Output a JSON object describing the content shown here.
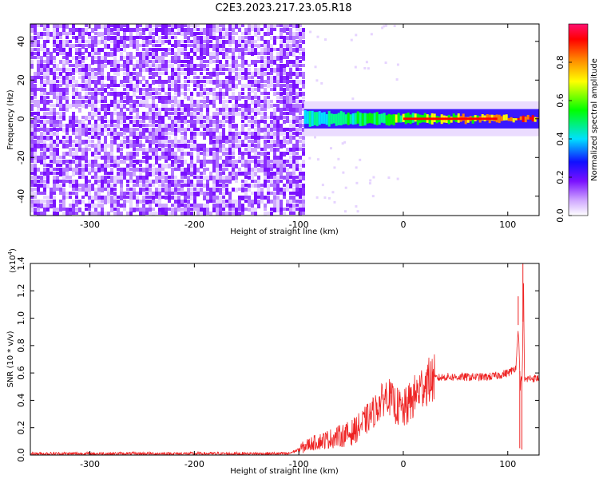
{
  "title": "C2E3.2023.217.23.05.R18",
  "chart_data": [
    {
      "type": "heatmap",
      "name": "spectrogram",
      "xlabel": "Height of straight line (km)",
      "ylabel": "Frequency (Hz)",
      "xlim": [
        -357,
        130
      ],
      "ylim": [
        -50,
        49
      ],
      "xticks": [
        -300,
        -200,
        -100,
        0,
        100
      ],
      "xtick_labels": [
        "-300",
        "-200",
        "-100",
        "0",
        "100"
      ],
      "yticks": [
        -40,
        -20,
        0,
        20,
        40
      ],
      "ytick_labels": [
        "-40",
        "-20",
        "0",
        "20",
        "40"
      ],
      "noise_region_km": [
        -357,
        -95
      ],
      "signal_band_hz": [
        -5,
        5
      ],
      "colorbar": {
        "label": "Normalized spectral amplitude",
        "range": [
          0,
          1
        ],
        "ticks": [
          0,
          0.2,
          0.4,
          0.6,
          0.8
        ],
        "tick_labels": [
          "0.0",
          "0.2",
          "0.4",
          "0.6",
          "0.8"
        ],
        "colors": [
          "#ffffff",
          "#cfa6ff",
          "#7a10ff",
          "#1010ff",
          "#00e0ff",
          "#00ff00",
          "#ffff00",
          "#ff8000",
          "#ff0000",
          "#ff1070"
        ]
      }
    },
    {
      "type": "line",
      "name": "snr",
      "xlabel": "Height of straight line (km)",
      "ylabel": "SNR (10 * v/v)",
      "yscale_label": "(x10",
      "yscale_exp": "4",
      "yscale_close": ")",
      "xlim": [
        -357,
        130
      ],
      "ylim": [
        0,
        1.4
      ],
      "xticks": [
        -300,
        -200,
        -100,
        0,
        100
      ],
      "xtick_labels": [
        "-300",
        "-200",
        "-100",
        "0",
        "100"
      ],
      "yticks": [
        0.0,
        0.2,
        0.4,
        0.6,
        0.8,
        1.0,
        1.2,
        1.4
      ],
      "ytick_labels": [
        "0.0",
        "0.2",
        "0.4",
        "0.6",
        "0.8",
        "1.0",
        "1.2",
        "1.4"
      ],
      "color": "#ee2222",
      "x": [
        -357,
        -300,
        -200,
        -110,
        -100,
        -90,
        -80,
        -70,
        -60,
        -50,
        -40,
        -30,
        -20,
        -15,
        -10,
        0,
        10,
        20,
        30,
        40,
        60,
        80,
        90,
        100,
        105,
        108,
        110,
        112,
        114,
        115,
        116,
        118,
        120,
        130
      ],
      "y": [
        0.01,
        0.01,
        0.01,
        0.01,
        0.04,
        0.08,
        0.1,
        0.12,
        0.14,
        0.16,
        0.22,
        0.3,
        0.4,
        0.45,
        0.38,
        0.32,
        0.42,
        0.52,
        0.56,
        0.57,
        0.57,
        0.57,
        0.58,
        0.6,
        0.62,
        0.65,
        0.95,
        0.5,
        0.6,
        1.35,
        0.55,
        0.55,
        0.56,
        0.56
      ],
      "spikes": [
        {
          "x": 110,
          "y": 1.16
        },
        {
          "x": 114.5,
          "y": 1.4
        },
        {
          "x": 111.5,
          "y": 0.05
        },
        {
          "x": 113.5,
          "y": 0.04
        }
      ]
    }
  ]
}
